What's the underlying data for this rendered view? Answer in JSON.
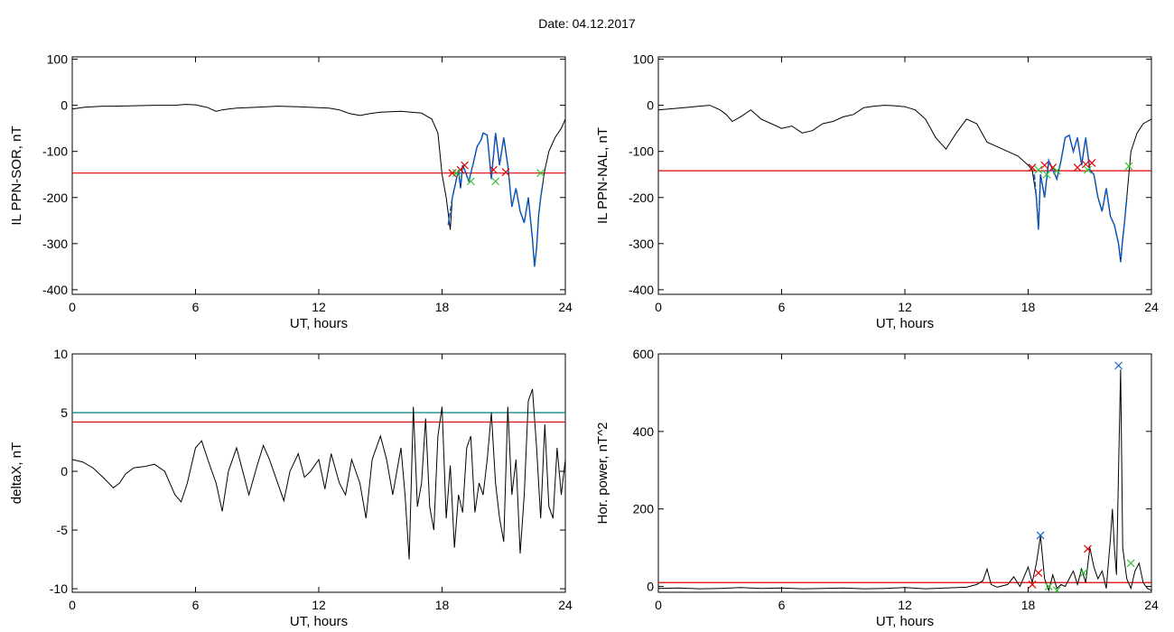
{
  "header": {
    "date_label": "Date:  04.12.2017"
  },
  "colors": {
    "trace": "#000000",
    "threshold": "#e00000",
    "threshold2": "#008080",
    "highlight": "#1060d0",
    "marker_a": "#e00000",
    "marker_b": "#30c030",
    "marker_c": "#1060d0"
  },
  "chart_data": [
    {
      "type": "line",
      "xlabel": "UT, hours",
      "ylabel": "IL PPN-SOR, nT",
      "xlim": [
        0,
        24
      ],
      "ylim": [
        -410,
        105
      ],
      "xticks": [
        0,
        6,
        12,
        18,
        24
      ],
      "yticks": [
        100,
        0,
        -100,
        -200,
        -300,
        -400
      ],
      "series": [
        {
          "x": [
            0,
            0.3,
            0.6,
            1,
            1.5,
            2,
            3,
            4,
            5,
            5.5,
            6,
            6.3,
            6.6,
            7,
            7.3,
            7.6,
            8,
            9,
            10,
            11,
            12,
            12.5,
            13,
            13.5,
            14,
            14.5,
            15,
            16,
            17,
            17.5,
            17.8,
            18,
            18.2,
            18.4,
            18.5,
            18.6,
            18.7,
            18.8,
            18.9,
            19,
            19.1,
            19.3,
            19.5,
            19.7,
            19.9,
            20,
            20.2,
            20.4,
            20.6,
            20.8,
            21,
            21.2,
            21.4,
            21.6,
            21.8,
            22,
            22.2,
            22.4,
            22.5,
            22.6,
            22.7,
            22.8,
            22.9,
            23,
            23.2,
            23.5,
            23.8,
            24
          ],
          "y": [
            -8,
            -6,
            -4,
            -3,
            -2,
            -2,
            -1,
            0,
            0,
            2,
            1,
            -2,
            -5,
            -13,
            -10,
            -8,
            -6,
            -4,
            -2,
            -3,
            -5,
            -6,
            -10,
            -18,
            -22,
            -18,
            -15,
            -13,
            -17,
            -30,
            -60,
            -150,
            -200,
            -270,
            -200,
            -180,
            -160,
            -140,
            -180,
            -130,
            -140,
            -165,
            -130,
            -90,
            -75,
            -60,
            -65,
            -160,
            -60,
            -130,
            -70,
            -130,
            -220,
            -180,
            -230,
            -255,
            -200,
            -290,
            -350,
            -310,
            -240,
            -200,
            -170,
            -140,
            -100,
            -70,
            -50,
            -30
          ]
        },
        {
          "name": "",
          "x": [
            18.3,
            18.5,
            18.6,
            18.7,
            18.8,
            18.9,
            19,
            19.1,
            19.3,
            19.5,
            19.7,
            19.9,
            20,
            20.2,
            20.4,
            20.6,
            20.8,
            21,
            21.2,
            21.4,
            21.6,
            21.8,
            22,
            22.2,
            22.4,
            22.5,
            22.6,
            22.7,
            22.8,
            22.9
          ],
          "y": [
            -260,
            -200,
            -180,
            -160,
            -140,
            -180,
            -130,
            -140,
            -165,
            -130,
            -90,
            -75,
            -60,
            -65,
            -160,
            -60,
            -130,
            -70,
            -130,
            -220,
            -180,
            -230,
            -255,
            -200,
            -290,
            -350,
            -310,
            -240,
            -200,
            -170
          ]
        }
      ],
      "hlines": [
        {
          "y": -147,
          "color": "#e00000"
        }
      ],
      "markers": [
        {
          "x": 18.5,
          "y": -147,
          "color": "#e00000"
        },
        {
          "x": 18.9,
          "y": -140,
          "color": "#e00000"
        },
        {
          "x": 19.1,
          "y": -130,
          "color": "#e00000"
        },
        {
          "x": 20.5,
          "y": -140,
          "color": "#e00000"
        },
        {
          "x": 21.1,
          "y": -145,
          "color": "#e00000"
        },
        {
          "x": 18.7,
          "y": -147,
          "color": "#30c030"
        },
        {
          "x": 19.4,
          "y": -165,
          "color": "#30c030"
        },
        {
          "x": 20.6,
          "y": -165,
          "color": "#30c030"
        },
        {
          "x": 22.8,
          "y": -147,
          "color": "#30c030"
        }
      ]
    },
    {
      "type": "line",
      "xlabel": "UT, hours",
      "ylabel": "IL PPN-NAL, nT",
      "xlim": [
        0,
        24
      ],
      "ylim": [
        -410,
        105
      ],
      "xticks": [
        0,
        6,
        12,
        18,
        24
      ],
      "yticks": [
        100,
        0,
        -100,
        -200,
        -300,
        -400
      ],
      "series": [
        {
          "x": [
            0,
            0.5,
            1,
            1.5,
            2,
            2.5,
            3,
            3.3,
            3.6,
            4,
            4.5,
            5,
            5.5,
            6,
            6.5,
            7,
            7.5,
            8,
            8.5,
            9,
            9.5,
            10,
            10.5,
            11,
            11.5,
            12,
            12.5,
            13,
            13.5,
            14,
            14.5,
            15,
            15.5,
            16,
            16.5,
            17,
            17.5,
            18,
            18.2,
            18.4,
            18.5,
            18.6,
            18.8,
            19,
            19.2,
            19.4,
            19.6,
            19.8,
            20,
            20.2,
            20.4,
            20.6,
            20.8,
            21,
            21.2,
            21.4,
            21.6,
            21.8,
            22,
            22.2,
            22.4,
            22.5,
            22.6,
            22.7,
            22.8,
            22.9,
            23,
            23.3,
            23.6,
            24
          ],
          "y": [
            -10,
            -8,
            -6,
            -4,
            -2,
            0,
            -10,
            -20,
            -35,
            -25,
            -10,
            -30,
            -40,
            -50,
            -45,
            -60,
            -55,
            -40,
            -35,
            -25,
            -20,
            -5,
            -2,
            0,
            -1,
            -3,
            -10,
            -30,
            -70,
            -95,
            -60,
            -30,
            -40,
            -80,
            -90,
            -100,
            -110,
            -130,
            -140,
            -200,
            -270,
            -150,
            -200,
            -120,
            -140,
            -160,
            -120,
            -70,
            -65,
            -100,
            -70,
            -130,
            -70,
            -140,
            -150,
            -200,
            -230,
            -180,
            -240,
            -260,
            -300,
            -340,
            -290,
            -250,
            -200,
            -150,
            -100,
            -60,
            -40,
            -30
          ]
        },
        {
          "name": "",
          "x": [
            18.3,
            18.4,
            18.5,
            18.6,
            18.8,
            19,
            19.2,
            19.4,
            19.6,
            19.8,
            20,
            20.2,
            20.4,
            20.6,
            20.8,
            21,
            21.2,
            21.4,
            21.6,
            21.8,
            22,
            22.2,
            22.4,
            22.5,
            22.6,
            22.7,
            22.8
          ],
          "y": [
            -150,
            -200,
            -270,
            -150,
            -200,
            -120,
            -140,
            -160,
            -120,
            -70,
            -65,
            -100,
            -70,
            -130,
            -70,
            -140,
            -150,
            -200,
            -230,
            -180,
            -240,
            -260,
            -300,
            -340,
            -290,
            -250,
            -200
          ]
        }
      ],
      "hlines": [
        {
          "y": -142,
          "color": "#e00000"
        }
      ],
      "markers": [
        {
          "x": 18.2,
          "y": -135,
          "color": "#e00000"
        },
        {
          "x": 18.8,
          "y": -130,
          "color": "#e00000"
        },
        {
          "x": 19.2,
          "y": -135,
          "color": "#e00000"
        },
        {
          "x": 20.4,
          "y": -135,
          "color": "#e00000"
        },
        {
          "x": 20.8,
          "y": -128,
          "color": "#e00000"
        },
        {
          "x": 21.1,
          "y": -125,
          "color": "#e00000"
        },
        {
          "x": 18.5,
          "y": -140,
          "color": "#30c030"
        },
        {
          "x": 18.9,
          "y": -150,
          "color": "#30c030"
        },
        {
          "x": 19.4,
          "y": -142,
          "color": "#30c030"
        },
        {
          "x": 20.9,
          "y": -140,
          "color": "#30c030"
        },
        {
          "x": 22.9,
          "y": -132,
          "color": "#30c030"
        }
      ]
    },
    {
      "type": "line",
      "xlabel": "UT, hours",
      "ylabel": "deltaX, nT",
      "xlim": [
        0,
        24
      ],
      "ylim": [
        -10.3,
        10
      ],
      "xticks": [
        0,
        6,
        12,
        18,
        24
      ],
      "yticks": [
        10,
        5,
        0,
        -5,
        -10
      ],
      "series": [
        {
          "x": [
            0,
            0.5,
            1,
            1.5,
            2,
            2.3,
            2.6,
            3,
            3.5,
            4,
            4.5,
            4.8,
            5,
            5.3,
            5.6,
            6,
            6.3,
            6.6,
            7,
            7.3,
            7.6,
            8,
            8.3,
            8.6,
            9,
            9.3,
            9.6,
            10,
            10.3,
            10.6,
            11,
            11.3,
            11.6,
            12,
            12.3,
            12.6,
            13,
            13.3,
            13.6,
            14,
            14.3,
            14.6,
            15,
            15.3,
            15.6,
            16,
            16.2,
            16.4,
            16.6,
            16.8,
            17,
            17.2,
            17.4,
            17.6,
            17.8,
            18,
            18.2,
            18.4,
            18.6,
            18.8,
            19,
            19.2,
            19.4,
            19.6,
            19.8,
            20,
            20.2,
            20.4,
            20.6,
            20.8,
            21,
            21.2,
            21.4,
            21.6,
            21.8,
            22,
            22.2,
            22.4,
            22.6,
            22.8,
            23,
            23.2,
            23.4,
            23.6,
            23.8,
            24
          ],
          "y": [
            1,
            0.8,
            0.3,
            -0.5,
            -1.4,
            -1,
            -0.2,
            0.3,
            0.4,
            0.6,
            0,
            -1.2,
            -2,
            -2.6,
            -1,
            2,
            2.6,
            1,
            -1,
            -3.4,
            0,
            2,
            0,
            -2,
            0.5,
            2.2,
            1,
            -1,
            -2.5,
            0,
            1.5,
            -0.5,
            0,
            1,
            -1.5,
            1.5,
            -1,
            -2,
            1,
            -1,
            -4,
            1,
            3,
            1,
            -2,
            2,
            -2,
            -7.5,
            5.5,
            -3,
            -1,
            4.5,
            -3,
            -5,
            3,
            5.5,
            -4,
            0.5,
            -6.5,
            -2,
            -3.5,
            2,
            3,
            -3.5,
            -1,
            -2,
            1,
            5,
            -1,
            -4,
            -6,
            5.5,
            -2,
            1,
            -7,
            -2,
            6,
            7,
            2,
            -4,
            4,
            -3,
            -4,
            2,
            -2,
            1
          ]
        }
      ],
      "hlines": [
        {
          "y": 5,
          "color": "#008080"
        },
        {
          "y": 4.2,
          "color": "#e00000"
        }
      ],
      "markers": []
    },
    {
      "type": "line",
      "xlabel": "UT, hours",
      "ylabel": "Hor. power, nT^2",
      "xlim": [
        0,
        24
      ],
      "ylim": [
        -15,
        600
      ],
      "xticks": [
        0,
        6,
        12,
        18,
        24
      ],
      "yticks": [
        600,
        400,
        200,
        0
      ],
      "series": [
        {
          "x": [
            0,
            1,
            2,
            3,
            4,
            5,
            6,
            7,
            8,
            9,
            10,
            11,
            12,
            13,
            14,
            15,
            15.5,
            15.8,
            16,
            16.2,
            16.5,
            17,
            17.3,
            17.6,
            18,
            18.2,
            18.4,
            18.6,
            18.8,
            19,
            19.2,
            19.4,
            19.6,
            19.8,
            20,
            20.2,
            20.4,
            20.6,
            20.8,
            21,
            21.2,
            21.4,
            21.6,
            21.8,
            22,
            22.1,
            22.2,
            22.3,
            22.4,
            22.5,
            22.6,
            22.8,
            23,
            23.2,
            23.4,
            23.6,
            23.8,
            24
          ],
          "y": [
            -5,
            -4,
            -6,
            -5,
            -3,
            -5,
            -4,
            -6,
            -5,
            -4,
            -6,
            -5,
            -3,
            -6,
            -4,
            -2,
            5,
            15,
            45,
            5,
            -2,
            5,
            25,
            0,
            50,
            10,
            60,
            130,
            20,
            -10,
            30,
            -5,
            5,
            0,
            20,
            40,
            5,
            45,
            10,
            100,
            50,
            20,
            40,
            -5,
            120,
            200,
            100,
            30,
            300,
            560,
            100,
            20,
            -5,
            40,
            60,
            10,
            -5,
            -10
          ]
        }
      ],
      "hlines": [
        {
          "y": 10,
          "color": "#e00000"
        }
      ],
      "markers": [
        {
          "x": 22.4,
          "y": 570,
          "color": "#1060d0"
        },
        {
          "x": 18.6,
          "y": 132,
          "color": "#1060d0"
        },
        {
          "x": 18.2,
          "y": 5,
          "color": "#e00000"
        },
        {
          "x": 18.5,
          "y": 35,
          "color": "#e00000"
        },
        {
          "x": 20.9,
          "y": 97,
          "color": "#e00000"
        },
        {
          "x": 19.0,
          "y": 0,
          "color": "#30c030"
        },
        {
          "x": 19.4,
          "y": -10,
          "color": "#30c030"
        },
        {
          "x": 20.7,
          "y": 35,
          "color": "#30c030"
        },
        {
          "x": 23.0,
          "y": 60,
          "color": "#30c030"
        }
      ]
    }
  ]
}
